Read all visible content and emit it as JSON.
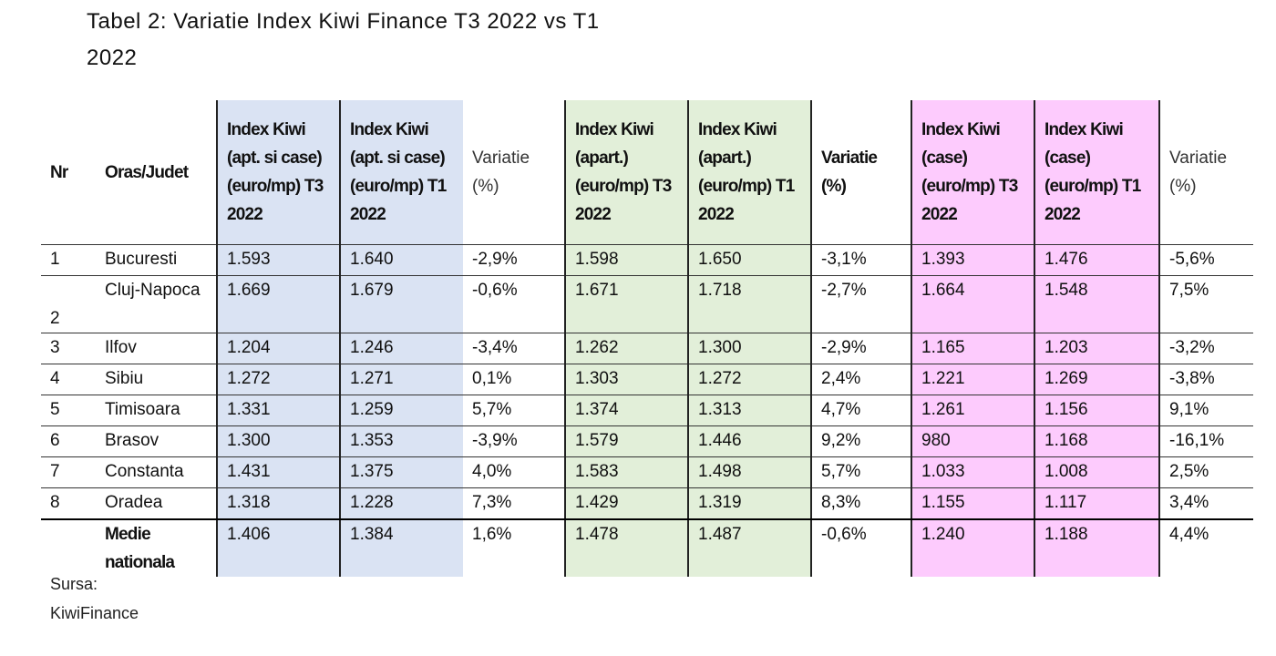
{
  "title": "Tabel 2: Variatie Index Kiwi Finance T3 2022 vs T1 2022",
  "table": {
    "header": [
      "Nr",
      "Oras/Judet",
      "Index Kiwi (apt. si case) (euro/mp) T3 2022",
      "Index Kiwi (apt. si case) (euro/mp) T1 2022",
      "Variatie (%)",
      "Index Kiwi (apart.) (euro/mp) T3 2022",
      "Index Kiwi (apart.) (euro/mp) T1 2022",
      "Variatie (%)",
      "Index Kiwi (case) (euro/mp) T3 2022",
      "Index Kiwi (case) (euro/mp) T1 2022",
      "Variatie (%)"
    ],
    "rows": [
      [
        "1",
        "Bucuresti",
        "1.593",
        "1.640",
        "-2,9%",
        "1.598",
        "1.650",
        "-3,1%",
        "1.393",
        "1.476",
        "-5,6%"
      ],
      [
        "2",
        "Cluj-Napoca",
        "1.669",
        "1.679",
        "-0,6%",
        "1.671",
        "1.718",
        "-2,7%",
        "1.664",
        "1.548",
        "7,5%"
      ],
      [
        "3",
        "Ilfov",
        "1.204",
        "1.246",
        "-3,4%",
        "1.262",
        "1.300",
        "-2,9%",
        "1.165",
        "1.203",
        "-3,2%"
      ],
      [
        "4",
        "Sibiu",
        "1.272",
        "1.271",
        "0,1%",
        "1.303",
        "1.272",
        "2,4%",
        "1.221",
        "1.269",
        "-3,8%"
      ],
      [
        "5",
        "Timisoara",
        "1.331",
        "1.259",
        "5,7%",
        "1.374",
        "1.313",
        "4,7%",
        "1.261",
        "1.156",
        "9,1%"
      ],
      [
        "6",
        "Brasov",
        "1.300",
        "1.353",
        "-3,9%",
        "1.579",
        "1.446",
        "9,2%",
        "980",
        "1.168",
        "-16,1%"
      ],
      [
        "7",
        "Constanta",
        "1.431",
        "1.375",
        "4,0%",
        "1.583",
        "1.498",
        "5,7%",
        "1.033",
        "1.008",
        "2,5%"
      ],
      [
        "8",
        "Oradea",
        "1.318",
        "1.228",
        "7,3%",
        "1.429",
        "1.319",
        "8,3%",
        "1.155",
        "1.117",
        "3,4%"
      ],
      [
        "",
        "Medie nationala",
        "1.406",
        "1.384",
        "1,6%",
        "1.478",
        "1.487",
        "-0,6%",
        "1.240",
        "1.188",
        "4,4%"
      ]
    ]
  },
  "source": "Sursa: KiwiFinance"
}
